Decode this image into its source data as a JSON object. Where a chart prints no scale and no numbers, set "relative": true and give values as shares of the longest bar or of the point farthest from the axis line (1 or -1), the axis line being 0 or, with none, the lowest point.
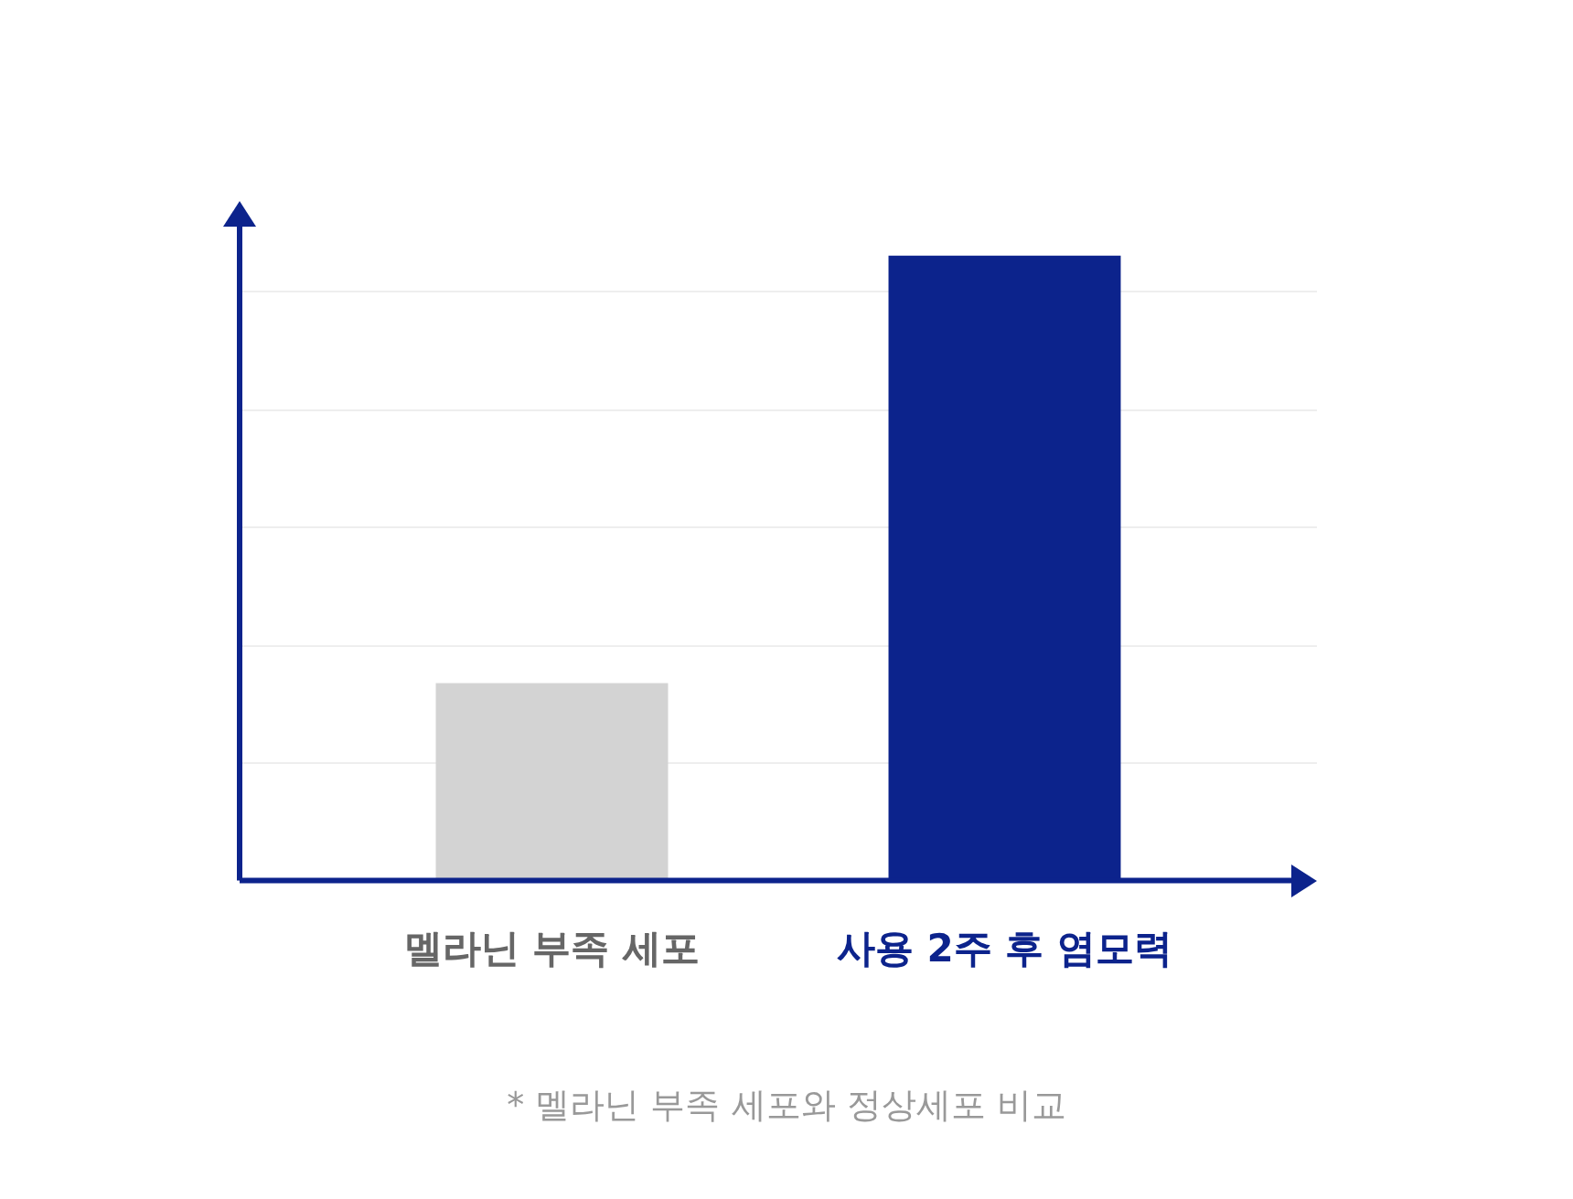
{
  "chart_data": {
    "type": "bar",
    "categories": [
      "멜라닌 부족 세포",
      "사용 2주 후 염모력"
    ],
    "values": [
      0.316,
      1
    ],
    "colors": [
      "#d3d3d3",
      "#0c238c"
    ],
    "relative": true,
    "grid": true,
    "annotations": [
      "* 멜라닌 부족 세포와 정상세포 비교"
    ]
  }
}
